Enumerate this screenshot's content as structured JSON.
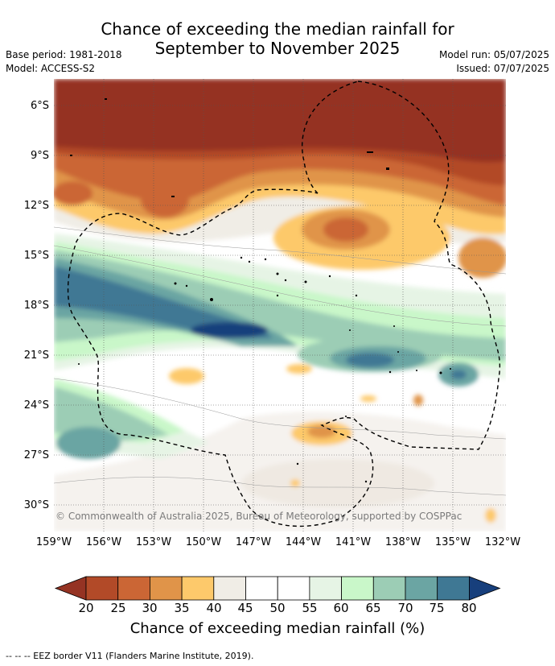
{
  "title": {
    "line1": "Chance of exceeding the median rainfall for",
    "line2": "September to November 2025"
  },
  "meta": {
    "base_period": "Base period: 1981-2018",
    "model": "Model: ACCESS-S2",
    "model_run": "Model run: 05/07/2025",
    "issued": "Issued: 07/07/2025"
  },
  "map": {
    "lat_labels": [
      "6°S",
      "9°S",
      "12°S",
      "15°S",
      "18°S",
      "21°S",
      "24°S",
      "27°S",
      "30°S"
    ],
    "lon_labels": [
      "159°W",
      "156°W",
      "153°W",
      "150°W",
      "147°W",
      "144°W",
      "141°W",
      "138°W",
      "135°W",
      "132°W"
    ],
    "copyright": "© Commonwealth of Australia 2025, Bureau of Meteorology, supported by COSPPac"
  },
  "colorbar": {
    "ticks": [
      "20",
      "25",
      "30",
      "35",
      "40",
      "45",
      "50",
      "55",
      "60",
      "65",
      "70",
      "75",
      "80"
    ],
    "colors": [
      "#953323",
      "#b24a28",
      "#cb6635",
      "#e09449",
      "#fdc96b",
      "#f0ede6",
      "#ffffff",
      "#ffffff",
      "#e6f4e5",
      "#c9f7c9",
      "#9ccdb5",
      "#6ba5a3",
      "#3f7894",
      "#173f7c"
    ],
    "label": "Chance of exceeding median rainfall (%)"
  },
  "footer": "--  --  -- EEZ border V11 (Flanders Marine Institute, 2019)."
}
